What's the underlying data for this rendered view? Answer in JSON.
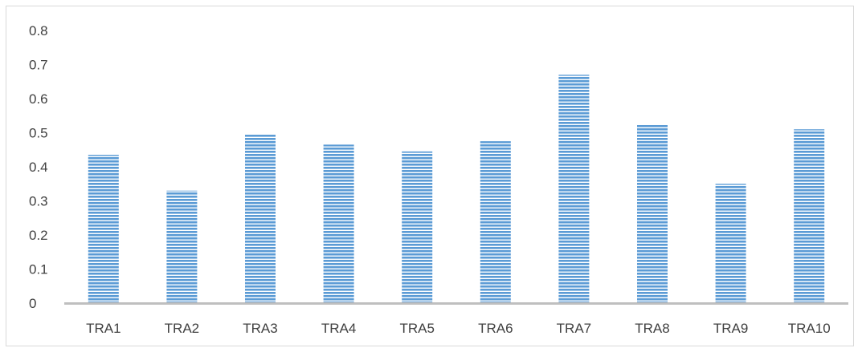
{
  "chart_data": {
    "type": "bar",
    "categories": [
      "TRA1",
      "TRA2",
      "TRA3",
      "TRA4",
      "TRA5",
      "TRA6",
      "TRA7",
      "TRA8",
      "TRA9",
      "TRA10"
    ],
    "values": [
      0.435,
      0.33,
      0.495,
      0.465,
      0.445,
      0.475,
      0.67,
      0.523,
      0.35,
      0.51
    ],
    "ylim": [
      0,
      0.8
    ],
    "yticks": [
      "0",
      "0.1",
      "0.2",
      "0.3",
      "0.4",
      "0.5",
      "0.6",
      "0.7",
      "0.8"
    ],
    "title": "",
    "xlabel": "",
    "ylabel": "",
    "grid": false,
    "bar_fill": "#5b9bd5",
    "bar_stripe": "#ffffff",
    "axis_color": "#bfbfbf"
  }
}
